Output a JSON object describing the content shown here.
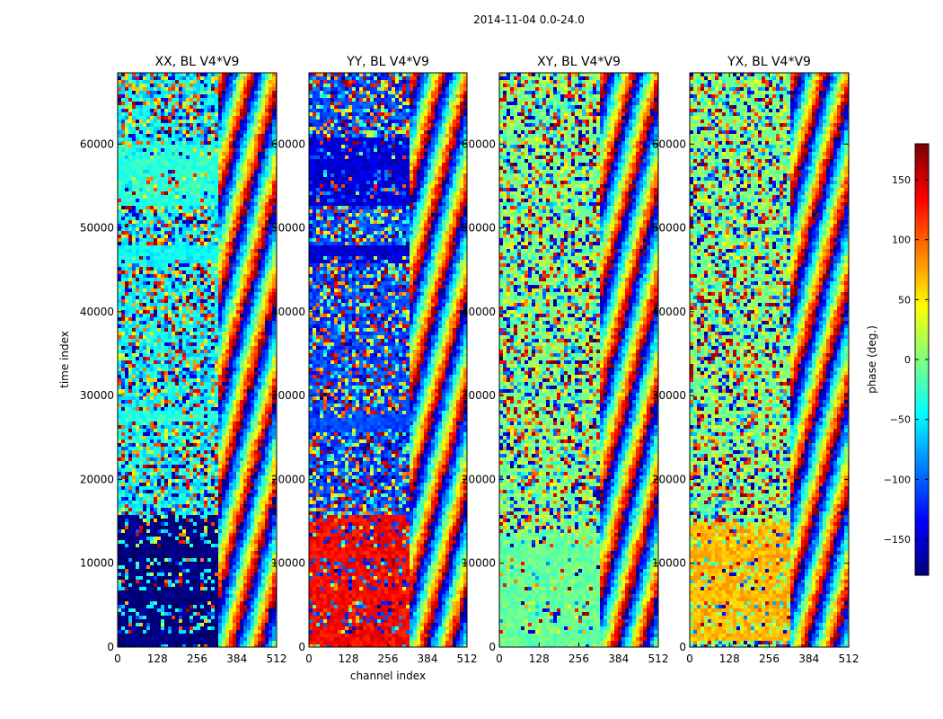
{
  "chart_data": {
    "type": "heatmap",
    "title": "2014-11-04 0.0-24.0",
    "xlabel": "channel index",
    "ylabel": "time index",
    "xlim": [
      0,
      512
    ],
    "ylim": [
      0,
      68500
    ],
    "x_ticks": [
      0,
      128,
      256,
      384,
      512
    ],
    "y_ticks": [
      0,
      10000,
      20000,
      30000,
      40000,
      50000,
      60000
    ],
    "y_tick_labels": [
      "0",
      "10000",
      "20000",
      "30000",
      "40000",
      "50000",
      "60000"
    ],
    "x_tick_labels": [
      "0",
      "128",
      "256",
      "384",
      "512"
    ],
    "panels": [
      {
        "title": "XX, BL V4*V9",
        "base": -45,
        "blocks": [
          {
            "t0": 0,
            "t1": 16000,
            "value": -180,
            "label": "dark blue bands"
          },
          {
            "t0": 27000,
            "t1": 28500,
            "value": -30,
            "label": "green band"
          },
          {
            "t0": 46000,
            "t1": 48000,
            "value": -45,
            "label": "cyan band"
          },
          {
            "t0": 53000,
            "t1": 60000,
            "value": -30,
            "label": "green bands"
          }
        ]
      },
      {
        "title": "YY, BL V4*V9",
        "base": -110,
        "blocks": [
          {
            "t0": 0,
            "t1": 16000,
            "value": 135,
            "label": "orange bands"
          },
          {
            "t0": 26000,
            "t1": 28000,
            "value": -110,
            "label": "blue band"
          },
          {
            "t0": 46000,
            "t1": 48000,
            "value": -150,
            "label": "blue band"
          },
          {
            "t0": 53000,
            "t1": 61000,
            "value": -150,
            "label": "blue bands"
          }
        ]
      },
      {
        "title": "XY, BL V4*V9",
        "base": 0,
        "blocks": [
          {
            "t0": 0,
            "t1": 14000,
            "value": -10,
            "label": "green bands"
          }
        ]
      },
      {
        "title": "YX, BL V4*V9",
        "base": 0,
        "blocks": [
          {
            "t0": 1000,
            "t1": 15000,
            "value": 70,
            "label": "orange stripes"
          }
        ]
      }
    ],
    "colorbar": {
      "label": "phase (deg.)",
      "range": [
        -180,
        180
      ],
      "ticks": [
        150,
        100,
        50,
        0,
        -50,
        -100,
        -150
      ],
      "tick_labels": [
        "150",
        "100",
        "50",
        "0",
        "−50",
        "−100",
        "−150"
      ],
      "colormap": "jet"
    }
  }
}
